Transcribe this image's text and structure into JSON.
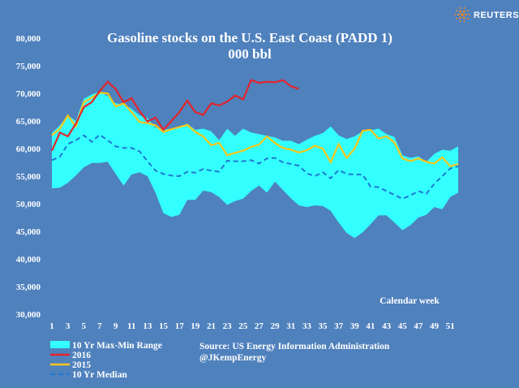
{
  "brand": {
    "name": "REUTERS",
    "logo_icon": "reuters-dot-logo-icon",
    "logo_color": "#f08a24"
  },
  "chart_data": {
    "type": "line",
    "title": "Gasoline stocks on the U.S. East Coast (PADD 1)",
    "subtitle": "000 bbl",
    "xlabel": "Calendar week",
    "ylabel": "",
    "xlim": [
      1,
      52
    ],
    "ylim": [
      30000,
      80000
    ],
    "yticks": [
      30000,
      35000,
      40000,
      45000,
      50000,
      55000,
      60000,
      65000,
      70000,
      75000,
      80000
    ],
    "ytick_labels": [
      "30,000",
      "35,000",
      "40,000",
      "45,000",
      "50,000",
      "55,000",
      "60,000",
      "65,000",
      "70,000",
      "75,000",
      "80,000"
    ],
    "xticks": [
      1,
      3,
      5,
      7,
      9,
      11,
      13,
      15,
      17,
      19,
      21,
      23,
      25,
      27,
      29,
      31,
      33,
      35,
      37,
      39,
      41,
      43,
      45,
      47,
      49,
      51
    ],
    "grid": false,
    "legend_position": "bottom-left",
    "colors": {
      "background": "#4f81bd",
      "range": "#33ffff",
      "y2016": "#e3242b",
      "y2015": "#f5c518",
      "median": "#1f78d1"
    },
    "range": {
      "name": "10 Yr Max-Min Range",
      "x": [
        1,
        2,
        3,
        4,
        5,
        6,
        7,
        8,
        9,
        10,
        11,
        12,
        13,
        14,
        15,
        16,
        17,
        18,
        19,
        20,
        21,
        22,
        23,
        24,
        25,
        26,
        27,
        28,
        29,
        30,
        31,
        32,
        33,
        34,
        35,
        36,
        37,
        38,
        39,
        40,
        41,
        42,
        43,
        44,
        45,
        46,
        47,
        48,
        49,
        50,
        51,
        52
      ],
      "max": [
        62800,
        64200,
        66000,
        65000,
        69000,
        69800,
        70300,
        69500,
        68200,
        68000,
        67200,
        66000,
        65500,
        63800,
        63400,
        63600,
        64000,
        64500,
        63400,
        63600,
        63100,
        61500,
        63600,
        62300,
        63600,
        62900,
        62600,
        62300,
        62000,
        61400,
        61400,
        60800,
        61600,
        62300,
        62800,
        64000,
        62400,
        61700,
        62200,
        63100,
        63300,
        63600,
        62600,
        62100,
        58800,
        58300,
        58600,
        57600,
        59000,
        59800,
        59600,
        60400
      ],
      "min": [
        52800,
        52900,
        53800,
        55100,
        56600,
        57400,
        57400,
        57600,
        55400,
        53300,
        55300,
        55700,
        55000,
        52000,
        48300,
        47600,
        48000,
        50700,
        50700,
        52400,
        52100,
        51200,
        49800,
        50500,
        50900,
        52300,
        53300,
        52000,
        54000,
        52500,
        51000,
        49700,
        49400,
        49700,
        49600,
        48700,
        46600,
        44700,
        43800,
        44800,
        46300,
        47900,
        47900,
        46600,
        45200,
        46100,
        47500,
        48000,
        49400,
        49000,
        51200,
        52000
      ]
    },
    "series": [
      {
        "name": "2016",
        "x": [
          1,
          2,
          3,
          4,
          5,
          6,
          7,
          8,
          9,
          10,
          11,
          12,
          13,
          14,
          15,
          16,
          17,
          18,
          19,
          20,
          21,
          22,
          23,
          24,
          25,
          26,
          27,
          28,
          29,
          30,
          31,
          32
        ],
        "values": [
          59600,
          62900,
          62200,
          64500,
          67500,
          68400,
          70400,
          72100,
          70800,
          68400,
          69100,
          66800,
          64900,
          65600,
          63400,
          65000,
          66600,
          68700,
          66600,
          66100,
          68200,
          67800,
          68500,
          69600,
          68900,
          72400,
          71900,
          72100,
          72000,
          72400,
          71300,
          70800
        ]
      },
      {
        "name": "2015",
        "x": [
          1,
          2,
          3,
          4,
          5,
          6,
          7,
          8,
          9,
          10,
          11,
          12,
          13,
          14,
          15,
          16,
          17,
          18,
          19,
          20,
          21,
          22,
          23,
          24,
          25,
          26,
          27,
          28,
          29,
          30,
          31,
          32,
          33,
          34,
          35,
          36,
          37,
          38,
          39,
          40,
          41,
          42,
          43,
          44,
          45,
          46,
          47,
          48,
          49,
          50,
          51,
          52
        ],
        "values": [
          62400,
          63600,
          66000,
          64000,
          68400,
          69200,
          70100,
          70000,
          67600,
          68200,
          66600,
          64800,
          64600,
          64200,
          63000,
          63500,
          63900,
          64300,
          63000,
          62200,
          60600,
          61000,
          58800,
          59200,
          59600,
          60300,
          60700,
          62200,
          61000,
          60100,
          59800,
          59300,
          59700,
          60500,
          60000,
          57500,
          60800,
          58300,
          60000,
          63200,
          63400,
          61800,
          62200,
          61100,
          58200,
          57700,
          58200,
          57600,
          57300,
          58400,
          56800,
          57200
        ]
      },
      {
        "name": "10 Yr Median",
        "x": [
          1,
          2,
          3,
          4,
          5,
          6,
          7,
          8,
          9,
          10,
          11,
          12,
          13,
          14,
          15,
          16,
          17,
          18,
          19,
          20,
          21,
          22,
          23,
          24,
          25,
          26,
          27,
          28,
          29,
          30,
          31,
          32,
          33,
          34,
          35,
          36,
          37,
          38,
          39,
          40,
          41,
          42,
          43,
          44,
          45,
          46,
          47,
          48,
          49,
          50,
          51,
          52
        ],
        "values": [
          57900,
          58500,
          60800,
          61500,
          62400,
          61200,
          62500,
          61500,
          60400,
          60100,
          60100,
          59500,
          57700,
          56000,
          55400,
          55100,
          55000,
          55800,
          55600,
          56300,
          56000,
          55800,
          57800,
          57700,
          57700,
          57900,
          57300,
          58200,
          58300,
          57500,
          57200,
          56900,
          55500,
          55000,
          55700,
          54600,
          56100,
          55400,
          55300,
          55300,
          53100,
          53000,
          52300,
          51600,
          50900,
          51500,
          52300,
          51800,
          53600,
          55000,
          56400,
          56800
        ]
      }
    ],
    "legend": [
      "10 Yr Max-Min Range",
      "2016",
      "2015",
      "10 Yr Median"
    ]
  },
  "source_note": {
    "line1": "Source: US Energy Information Administration",
    "line2": "@JKempEnergy"
  }
}
